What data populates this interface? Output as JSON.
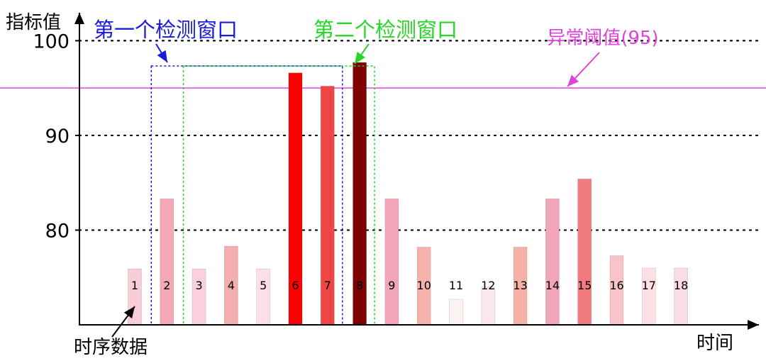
{
  "chart_data": {
    "type": "bar",
    "categories": [
      "1",
      "2",
      "3",
      "4",
      "5",
      "6",
      "7",
      "8",
      "9",
      "10",
      "11",
      "12",
      "13",
      "14",
      "15",
      "16",
      "17",
      "18"
    ],
    "values": [
      75.9,
      83.3,
      75.9,
      78.3,
      75.9,
      96.6,
      95.2,
      97.7,
      83.3,
      78.2,
      72.7,
      74.0,
      78.2,
      83.3,
      85.4,
      77.3,
      76.0,
      76.0
    ],
    "bar_colors": [
      "#f9cdd8",
      "#f4a8b5",
      "#fccfe0",
      "#f4aeae",
      "#fde0e7",
      "#ff0000",
      "#f04545",
      "#800000",
      "#f2a5b9",
      "#f6b2aa",
      "#fcf3f3",
      "#fbe8ea",
      "#f6b1a7",
      "#f2a6b9",
      "#f27b7f",
      "#f9c3c9",
      "#fde0e6",
      "#f9dde2"
    ],
    "ylabel": "指标值",
    "xlabel": "时间",
    "yticks": [
      100,
      90,
      80
    ],
    "ylim": [
      70,
      102.2
    ],
    "grid": "horizontal dotted",
    "threshold": {
      "value": 95,
      "label": "异常阈值(95)",
      "color": "#dd44dd"
    },
    "windows": [
      {
        "label": "第一个检测窗口",
        "start": 1,
        "end": 6,
        "color": "#1a1adf"
      },
      {
        "label": "第二个检测窗口",
        "start": 2,
        "end": 7,
        "color": "#27d627"
      }
    ],
    "annotation": "时序数据"
  }
}
